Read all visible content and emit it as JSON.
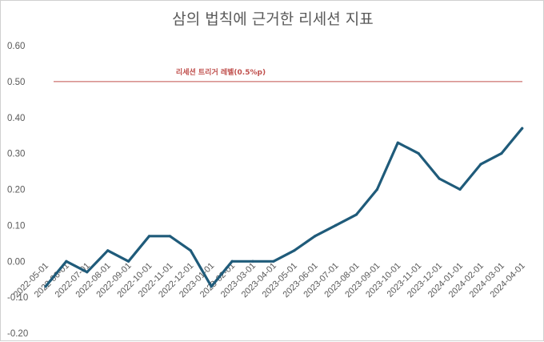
{
  "chart_data": {
    "type": "line",
    "title": "삼의 법칙에 근거한 리세션 지표",
    "xlabel": "",
    "ylabel": "",
    "ylim": [
      -0.2,
      0.6
    ],
    "yticks": [
      "0.60",
      "0.50",
      "0.40",
      "0.30",
      "0.20",
      "0.10",
      "0.00",
      "-0.10",
      "-0.20"
    ],
    "categories": [
      "2022-05-01",
      "2022-06-01",
      "2022-07-01",
      "2022-08-01",
      "2022-09-01",
      "2022-10-01",
      "2022-11-01",
      "2022-12-01",
      "2023-01-01",
      "2023-02-01",
      "2023-03-01",
      "2023-04-01",
      "2023-05-01",
      "2023-06-01",
      "2023-07-01",
      "2023-08-01",
      "2023-09-01",
      "2023-10-01",
      "2023-11-01",
      "2023-12-01",
      "2024-01-01",
      "2024-02-01",
      "2024-03-01",
      "2024-04-01"
    ],
    "series": [
      {
        "values": [
          -0.07,
          0.0,
          -0.03,
          0.03,
          0.0,
          0.07,
          0.07,
          0.03,
          -0.07,
          0.0,
          0.0,
          0.0,
          0.03,
          0.07,
          0.1,
          0.13,
          0.2,
          0.33,
          0.3,
          0.23,
          0.2,
          0.27,
          0.3,
          0.37
        ],
        "color": "#1f5b7a"
      }
    ],
    "reference_line": {
      "label": "리세션 트리거 레벨(0.5%p)",
      "value": 0.5,
      "color": "#c0504d"
    },
    "grid": false,
    "legend": "none"
  }
}
